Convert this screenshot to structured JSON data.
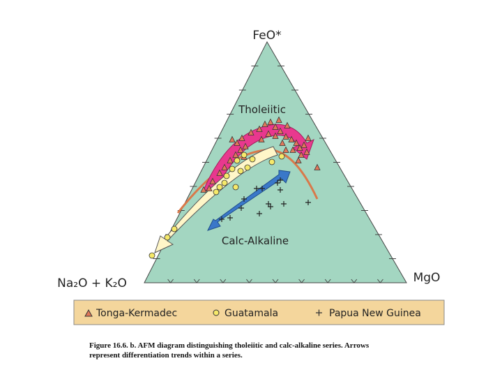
{
  "diagram": {
    "apex_labels": {
      "top": "FeO*",
      "left": "Na₂O + K₂O",
      "right": "MgO"
    },
    "region_labels": [
      "Tholeiitic",
      "Calc-Alkaline"
    ],
    "legend": [
      "Tonga-Kermadec",
      "Guatamala",
      "Papua New Guinea"
    ],
    "caption": [
      "Figure 16.6. b. AFM diagram distinguishing tholeiitic and calc-alkaline series. Arrows",
      "represent differentiation trends within a series."
    ]
  }
}
